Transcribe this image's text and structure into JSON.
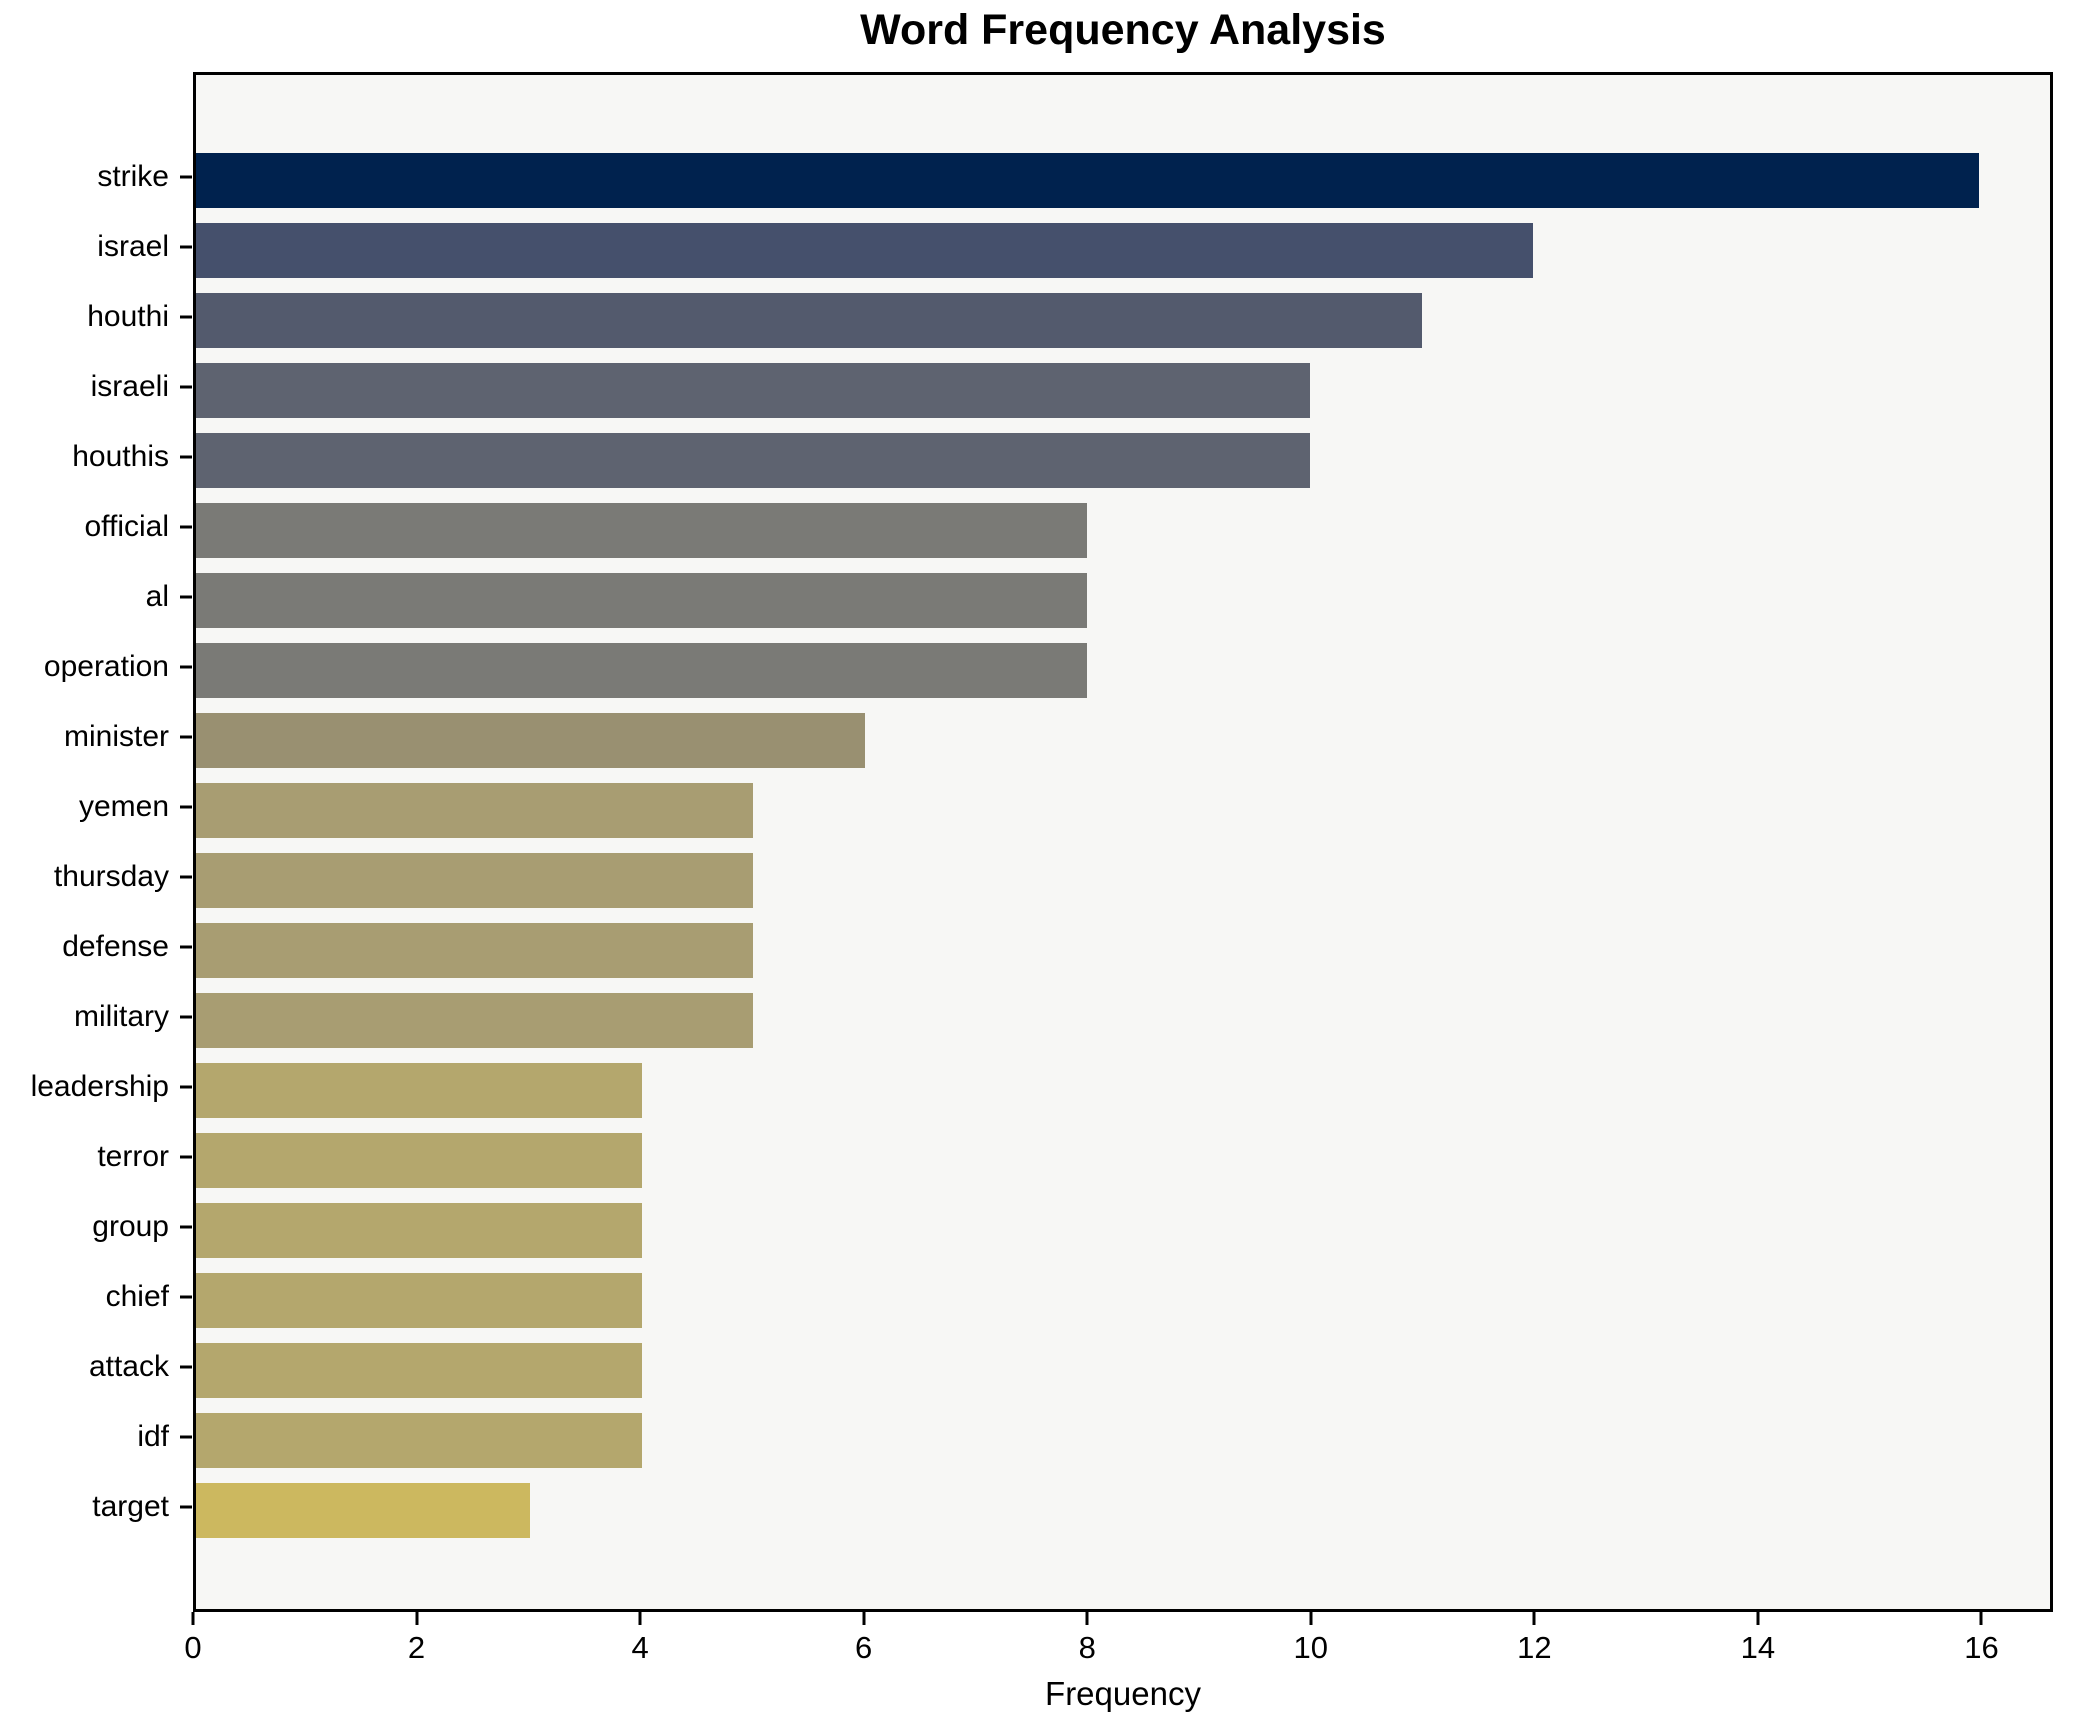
{
  "chart_data": {
    "type": "bar",
    "orientation": "horizontal",
    "title": "Word Frequency Analysis",
    "xlabel": "Frequency",
    "ylabel": "",
    "categories": [
      "strike",
      "israel",
      "houthi",
      "israeli",
      "houthis",
      "official",
      "al",
      "operation",
      "minister",
      "yemen",
      "thursday",
      "defense",
      "military",
      "leadership",
      "terror",
      "group",
      "chief",
      "attack",
      "idf",
      "target"
    ],
    "values": [
      16,
      12,
      11,
      10,
      10,
      8,
      8,
      8,
      6,
      5,
      5,
      5,
      5,
      4,
      4,
      4,
      4,
      4,
      4,
      3
    ],
    "bar_colors": [
      "#00224e",
      "#45506c",
      "#535a6d",
      "#5e6370",
      "#5e6370",
      "#7a7a76",
      "#7a7a76",
      "#7a7a76",
      "#999071",
      "#a89d72",
      "#a89d72",
      "#a89d72",
      "#a89d72",
      "#b4a76d",
      "#b4a76d",
      "#b4a76d",
      "#b4a76d",
      "#b4a76d",
      "#b4a76d",
      "#ccb85f"
    ],
    "xlim": [
      0,
      16.64
    ],
    "x_ticks": [
      0,
      2,
      4,
      6,
      8,
      10,
      12,
      14,
      16
    ],
    "grid": false,
    "legend": "none",
    "plot_background": "#f7f7f5",
    "figure_background": "#ffffff",
    "spine_color": "#000000"
  }
}
